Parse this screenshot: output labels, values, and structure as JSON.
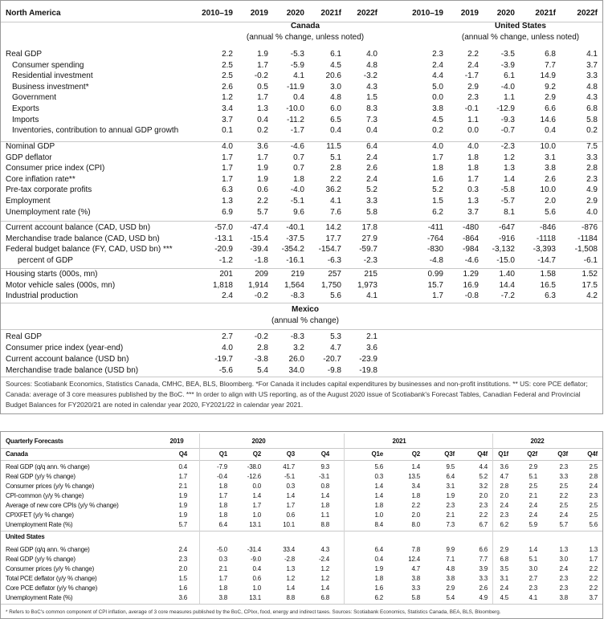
{
  "table1": {
    "title": "North America",
    "columns_canada": [
      "2010–19",
      "2019",
      "2020",
      "2021f",
      "2022f"
    ],
    "columns_us": [
      "2010–19",
      "2019",
      "2020",
      "2021f",
      "2022f"
    ],
    "canada": {
      "name": "Canada",
      "note": "(annual % change, unless noted)"
    },
    "us": {
      "name": "United States",
      "note": "(annual % change, unless noted)"
    },
    "groups": [
      [
        {
          "label": "Real GDP",
          "canada": [
            "2.2",
            "1.9",
            "-5.3",
            "6.1",
            "4.0"
          ],
          "us": [
            "2.3",
            "2.2",
            "-3.5",
            "6.8",
            "4.1"
          ]
        },
        {
          "label": "Consumer spending",
          "canada": [
            "2.5",
            "1.7",
            "-5.9",
            "4.5",
            "4.8"
          ],
          "us": [
            "2.4",
            "2.4",
            "-3.9",
            "7.7",
            "3.7"
          ]
        },
        {
          "label": "Residential investment",
          "canada": [
            "2.5",
            "-0.2",
            "4.1",
            "20.6",
            "-3.2"
          ],
          "us": [
            "4.4",
            "-1.7",
            "6.1",
            "14.9",
            "3.3"
          ]
        },
        {
          "label": "Business investment*",
          "canada": [
            "2.6",
            "0.5",
            "-11.9",
            "3.0",
            "4.3"
          ],
          "us": [
            "5.0",
            "2.9",
            "-4.0",
            "9.2",
            "4.8"
          ]
        },
        {
          "label": "Government",
          "canada": [
            "1.2",
            "1.7",
            "0.4",
            "4.8",
            "1.5"
          ],
          "us": [
            "0.0",
            "2.3",
            "1.1",
            "2.9",
            "4.3"
          ]
        },
        {
          "label": "Exports",
          "canada": [
            "3.4",
            "1.3",
            "-10.0",
            "6.0",
            "8.3"
          ],
          "us": [
            "3.8",
            "-0.1",
            "-12.9",
            "6.6",
            "6.8"
          ]
        },
        {
          "label": "Imports",
          "canada": [
            "3.7",
            "0.4",
            "-11.2",
            "6.5",
            "7.3"
          ],
          "us": [
            "4.5",
            "1.1",
            "-9.3",
            "14.6",
            "5.8"
          ]
        },
        {
          "label": "Inventories, contribution to annual GDP growth",
          "canada": [
            "0.1",
            "0.2",
            "-1.7",
            "0.4",
            "0.4"
          ],
          "us": [
            "0.2",
            "0.0",
            "-0.7",
            "0.4",
            "0.2"
          ]
        }
      ],
      [
        {
          "label": "Nominal GDP",
          "canada": [
            "4.0",
            "3.6",
            "-4.6",
            "11.5",
            "6.4"
          ],
          "us": [
            "4.0",
            "4.0",
            "-2.3",
            "10.0",
            "7.5"
          ]
        },
        {
          "label": "GDP deflator",
          "canada": [
            "1.7",
            "1.7",
            "0.7",
            "5.1",
            "2.4"
          ],
          "us": [
            "1.7",
            "1.8",
            "1.2",
            "3.1",
            "3.3"
          ]
        },
        {
          "label": "Consumer price index (CPI)",
          "canada": [
            "1.7",
            "1.9",
            "0.7",
            "2.8",
            "2.6"
          ],
          "us": [
            "1.8",
            "1.8",
            "1.3",
            "3.8",
            "2.8"
          ]
        },
        {
          "label": "Core inflation rate**",
          "canada": [
            "1.7",
            "1.9",
            "1.8",
            "2.2",
            "2.4"
          ],
          "us": [
            "1.6",
            "1.7",
            "1.4",
            "2.6",
            "2.3"
          ]
        },
        {
          "label": "Pre-tax corporate profits",
          "canada": [
            "6.3",
            "0.6",
            "-4.0",
            "36.2",
            "5.2"
          ],
          "us": [
            "5.2",
            "0.3",
            "-5.8",
            "10.0",
            "4.9"
          ]
        },
        {
          "label": "Employment",
          "canada": [
            "1.3",
            "2.2",
            "-5.1",
            "4.1",
            "3.3"
          ],
          "us": [
            "1.5",
            "1.3",
            "-5.7",
            "2.0",
            "2.9"
          ]
        },
        {
          "label": "Unemployment rate (%)",
          "canada": [
            "6.9",
            "5.7",
            "9.6",
            "7.6",
            "5.8"
          ],
          "us": [
            "6.2",
            "3.7",
            "8.1",
            "5.6",
            "4.0"
          ]
        }
      ],
      [
        {
          "label": "Current account balance (CAD, USD bn)",
          "canada": [
            "-57.0",
            "-47.4",
            "-40.1",
            "14.2",
            "17.8"
          ],
          "us": [
            "-411",
            "-480",
            "-647",
            "-846",
            "-876"
          ]
        },
        {
          "label": "Merchandise trade balance (CAD, USD bn)",
          "canada": [
            "-13.1",
            "-15.4",
            "-37.5",
            "17.7",
            "27.9"
          ],
          "us": [
            "-764",
            "-864",
            "-916",
            "-1118",
            "-1184"
          ]
        },
        {
          "label": "Federal budget balance (FY, CAD, USD bn) ***",
          "canada": [
            "-20.9",
            "-39.4",
            "-354.2",
            "-154.7",
            "-59.7"
          ],
          "us": [
            "-830",
            "-984",
            "-3,132",
            "-3,393",
            "-1,508"
          ]
        },
        {
          "label": "percent of GDP",
          "canada": [
            "-1.2",
            "-1.8",
            "-16.1",
            "-6.3",
            "-2.3"
          ],
          "us": [
            "-4.8",
            "-4.6",
            "-15.0",
            "-14.7",
            "-6.1"
          ]
        }
      ],
      [
        {
          "label": "Housing starts (000s, mn)",
          "canada": [
            "201",
            "209",
            "219",
            "257",
            "215"
          ],
          "us": [
            "0.99",
            "1.29",
            "1.40",
            "1.58",
            "1.52"
          ]
        },
        {
          "label": "Motor vehicle sales (000s, mn)",
          "canada": [
            "1,818",
            "1,914",
            "1,564",
            "1,750",
            "1,973"
          ],
          "us": [
            "15.7",
            "16.9",
            "14.4",
            "16.5",
            "17.5"
          ]
        },
        {
          "label": "Industrial production",
          "canada": [
            "2.4",
            "-0.2",
            "-8.3",
            "5.6",
            "4.1"
          ],
          "us": [
            "1.7",
            "-0.8",
            "-7.2",
            "6.3",
            "4.2"
          ]
        }
      ]
    ],
    "mexico": {
      "name": "Mexico",
      "note": "(annual % change)",
      "rows": [
        {
          "label": "Real GDP",
          "values": [
            "2.7",
            "-0.2",
            "-8.3",
            "5.3",
            "2.1"
          ]
        },
        {
          "label": "Consumer price index (year-end)",
          "values": [
            "4.0",
            "2.8",
            "3.2",
            "4.7",
            "3.6"
          ]
        },
        {
          "label": "Current account balance (USD bn)",
          "values": [
            "-19.7",
            "-3.8",
            "26.0",
            "-20.7",
            "-23.9"
          ]
        },
        {
          "label": "Merchandise trade balance (USD bn)",
          "values": [
            "-5.6",
            "5.4",
            "34.0",
            "-9.8",
            "-19.8"
          ]
        }
      ]
    },
    "footnote": "Sources: Scotiabank Economics, Statistics Canada, CMHC, BEA, BLS, Bloomberg. *For Canada it includes capital expenditures by businesses and non-profit institutions. ** US: core PCE deflator; Canada: average of 3 core measures published by the BoC. *** In order to align with US reporting, as of the August 2020 issue of Scotiabank's Forecast Tables, Canadian Federal and Provincial Budget Balances for FY2020/21 are noted in calendar year 2020, FY2021/22 in calendar year 2021."
  },
  "table2": {
    "title": "Quarterly Forecasts",
    "years": [
      "2019",
      "2020",
      "2021",
      "2022"
    ],
    "quarters": [
      "Q4",
      "Q1",
      "Q2",
      "Q3",
      "Q4",
      "Q1e",
      "Q2",
      "Q3f",
      "Q4f",
      "Q1f",
      "Q2f",
      "Q3f",
      "Q4f"
    ],
    "sections": [
      {
        "name": "Canada",
        "rows": [
          {
            "label": "Real GDP (q/q ann. % change)",
            "values": [
              "0.4",
              "-7.9",
              "-38.0",
              "41.7",
              "9.3",
              "5.6",
              "1.4",
              "9.5",
              "4.4",
              "3.6",
              "2.9",
              "2.3",
              "2.5"
            ]
          },
          {
            "label": "Real GDP (y/y % change)",
            "values": [
              "1.7",
              "-0.4",
              "-12.6",
              "-5.1",
              "-3.1",
              "0.3",
              "13.5",
              "6.4",
              "5.2",
              "4.7",
              "5.1",
              "3.3",
              "2.8"
            ]
          },
          {
            "label": "Consumer prices (y/y % change)",
            "values": [
              "2.1",
              "1.8",
              "0.0",
              "0.3",
              "0.8",
              "1.4",
              "3.4",
              "3.1",
              "3.2",
              "2.8",
              "2.5",
              "2.5",
              "2.4"
            ]
          },
          {
            "label": "CPI-common (y/y % change)",
            "values": [
              "1.9",
              "1.7",
              "1.4",
              "1.4",
              "1.4",
              "1.4",
              "1.8",
              "1.9",
              "2.0",
              "2.0",
              "2.1",
              "2.2",
              "2.3"
            ]
          },
          {
            "label": "Average of new core CPIs (y/y % change)",
            "values": [
              "1.9",
              "1.8",
              "1.7",
              "1.7",
              "1.8",
              "1.8",
              "2.2",
              "2.3",
              "2.3",
              "2.4",
              "2.4",
              "2.5",
              "2.5"
            ]
          },
          {
            "label": "CPIXFET (y/y % change)",
            "values": [
              "1.9",
              "1.8",
              "1.0",
              "0.6",
              "1.1",
              "1.0",
              "2.0",
              "2.1",
              "2.2",
              "2.3",
              "2.4",
              "2.4",
              "2.5"
            ]
          },
          {
            "label": "Unemployment Rate (%)",
            "values": [
              "5.7",
              "6.4",
              "13.1",
              "10.1",
              "8.8",
              "8.4",
              "8.0",
              "7.3",
              "6.7",
              "6.2",
              "5.9",
              "5.7",
              "5.6"
            ]
          }
        ]
      },
      {
        "name": "United States",
        "rows": [
          {
            "label": "Real GDP (q/q ann. % change)",
            "values": [
              "2.4",
              "-5.0",
              "-31.4",
              "33.4",
              "4.3",
              "6.4",
              "7.8",
              "9.9",
              "6.6",
              "2.9",
              "1.4",
              "1.3",
              "1.3"
            ]
          },
          {
            "label": "Real GDP (y/y % change)",
            "values": [
              "2.3",
              "0.3",
              "-9.0",
              "-2.8",
              "-2.4",
              "0.4",
              "12.4",
              "7.1",
              "7.7",
              "6.8",
              "5.1",
              "3.0",
              "1.7"
            ]
          },
          {
            "label": "Consumer prices (y/y % change)",
            "values": [
              "2.0",
              "2.1",
              "0.4",
              "1.3",
              "1.2",
              "1.9",
              "4.7",
              "4.8",
              "3.9",
              "3.5",
              "3.0",
              "2.4",
              "2.2"
            ]
          },
          {
            "label": "Total PCE deflator (y/y % change)",
            "values": [
              "1.5",
              "1.7",
              "0.6",
              "1.2",
              "1.2",
              "1.8",
              "3.8",
              "3.8",
              "3.3",
              "3.1",
              "2.7",
              "2.3",
              "2.2"
            ]
          },
          {
            "label": "Core PCE deflator (y/y % change)",
            "values": [
              "1.6",
              "1.8",
              "1.0",
              "1.4",
              "1.4",
              "1.6",
              "3.3",
              "2.9",
              "2.6",
              "2.4",
              "2.3",
              "2.3",
              "2.2"
            ]
          },
          {
            "label": "Unemployment Rate (%)",
            "values": [
              "3.6",
              "3.8",
              "13.1",
              "8.8",
              "6.8",
              "6.2",
              "5.8",
              "5.4",
              "4.9",
              "4.5",
              "4.1",
              "3.8",
              "3.7"
            ]
          }
        ]
      }
    ],
    "footnote": "* Refers to BoC's common component of CPI inflation, average of 3 core measures published by the BoC, CPIxx, food, energy and indirect taxes. Sources: Scotiabank Economics, Statistics Canada, BEA, BLS, Bloomberg."
  }
}
